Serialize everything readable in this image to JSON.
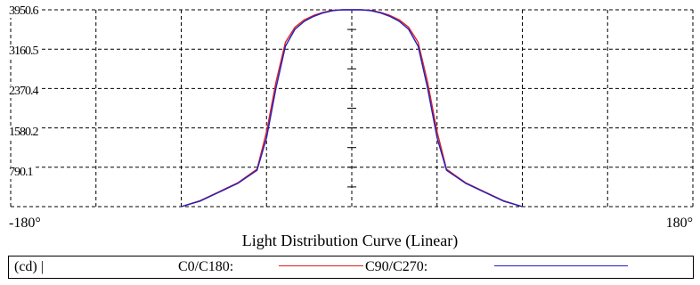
{
  "chart_data": {
    "type": "line",
    "title": "Light Distribution Curve (Linear)",
    "unit": "(cd) |",
    "x_range": [
      -180,
      180
    ],
    "x_min_label": "-180°",
    "x_max_label": "180°",
    "y_range": [
      0,
      3950.6
    ],
    "y_ticks": [
      "3950.6",
      "3160.5",
      "2370.4",
      "1580.2",
      "790.1"
    ],
    "grid": true,
    "legend_placement": "bottom",
    "series": [
      {
        "name": "C0/C180:",
        "color": "#e02020",
        "points": [
          [
            -90,
            0
          ],
          [
            -80,
            120
          ],
          [
            -70,
            300
          ],
          [
            -60,
            480
          ],
          [
            -50,
            750
          ],
          [
            -45,
            1500
          ],
          [
            -40,
            2500
          ],
          [
            -35,
            3300
          ],
          [
            -30,
            3600
          ],
          [
            -25,
            3750
          ],
          [
            -20,
            3840
          ],
          [
            -15,
            3900
          ],
          [
            -10,
            3940
          ],
          [
            -5,
            3950.6
          ],
          [
            0,
            3950.6
          ],
          [
            5,
            3950.6
          ],
          [
            10,
            3940
          ],
          [
            15,
            3900
          ],
          [
            20,
            3840
          ],
          [
            25,
            3750
          ],
          [
            30,
            3600
          ],
          [
            35,
            3300
          ],
          [
            40,
            2500
          ],
          [
            45,
            1500
          ],
          [
            50,
            750
          ],
          [
            60,
            480
          ],
          [
            70,
            300
          ],
          [
            80,
            120
          ],
          [
            90,
            0
          ]
        ]
      },
      {
        "name": "C90/C270:",
        "color": "#2020c0",
        "points": [
          [
            -90,
            0
          ],
          [
            -80,
            110
          ],
          [
            -70,
            290
          ],
          [
            -60,
            470
          ],
          [
            -50,
            730
          ],
          [
            -45,
            1380
          ],
          [
            -40,
            2380
          ],
          [
            -35,
            3220
          ],
          [
            -30,
            3560
          ],
          [
            -25,
            3720
          ],
          [
            -20,
            3820
          ],
          [
            -15,
            3890
          ],
          [
            -10,
            3935
          ],
          [
            -5,
            3950.6
          ],
          [
            0,
            3950.6
          ],
          [
            5,
            3950.6
          ],
          [
            10,
            3935
          ],
          [
            15,
            3890
          ],
          [
            20,
            3820
          ],
          [
            25,
            3720
          ],
          [
            30,
            3560
          ],
          [
            35,
            3220
          ],
          [
            40,
            2380
          ],
          [
            45,
            1380
          ],
          [
            50,
            730
          ],
          [
            60,
            470
          ],
          [
            70,
            290
          ],
          [
            80,
            110
          ],
          [
            90,
            0
          ]
        ]
      }
    ]
  }
}
